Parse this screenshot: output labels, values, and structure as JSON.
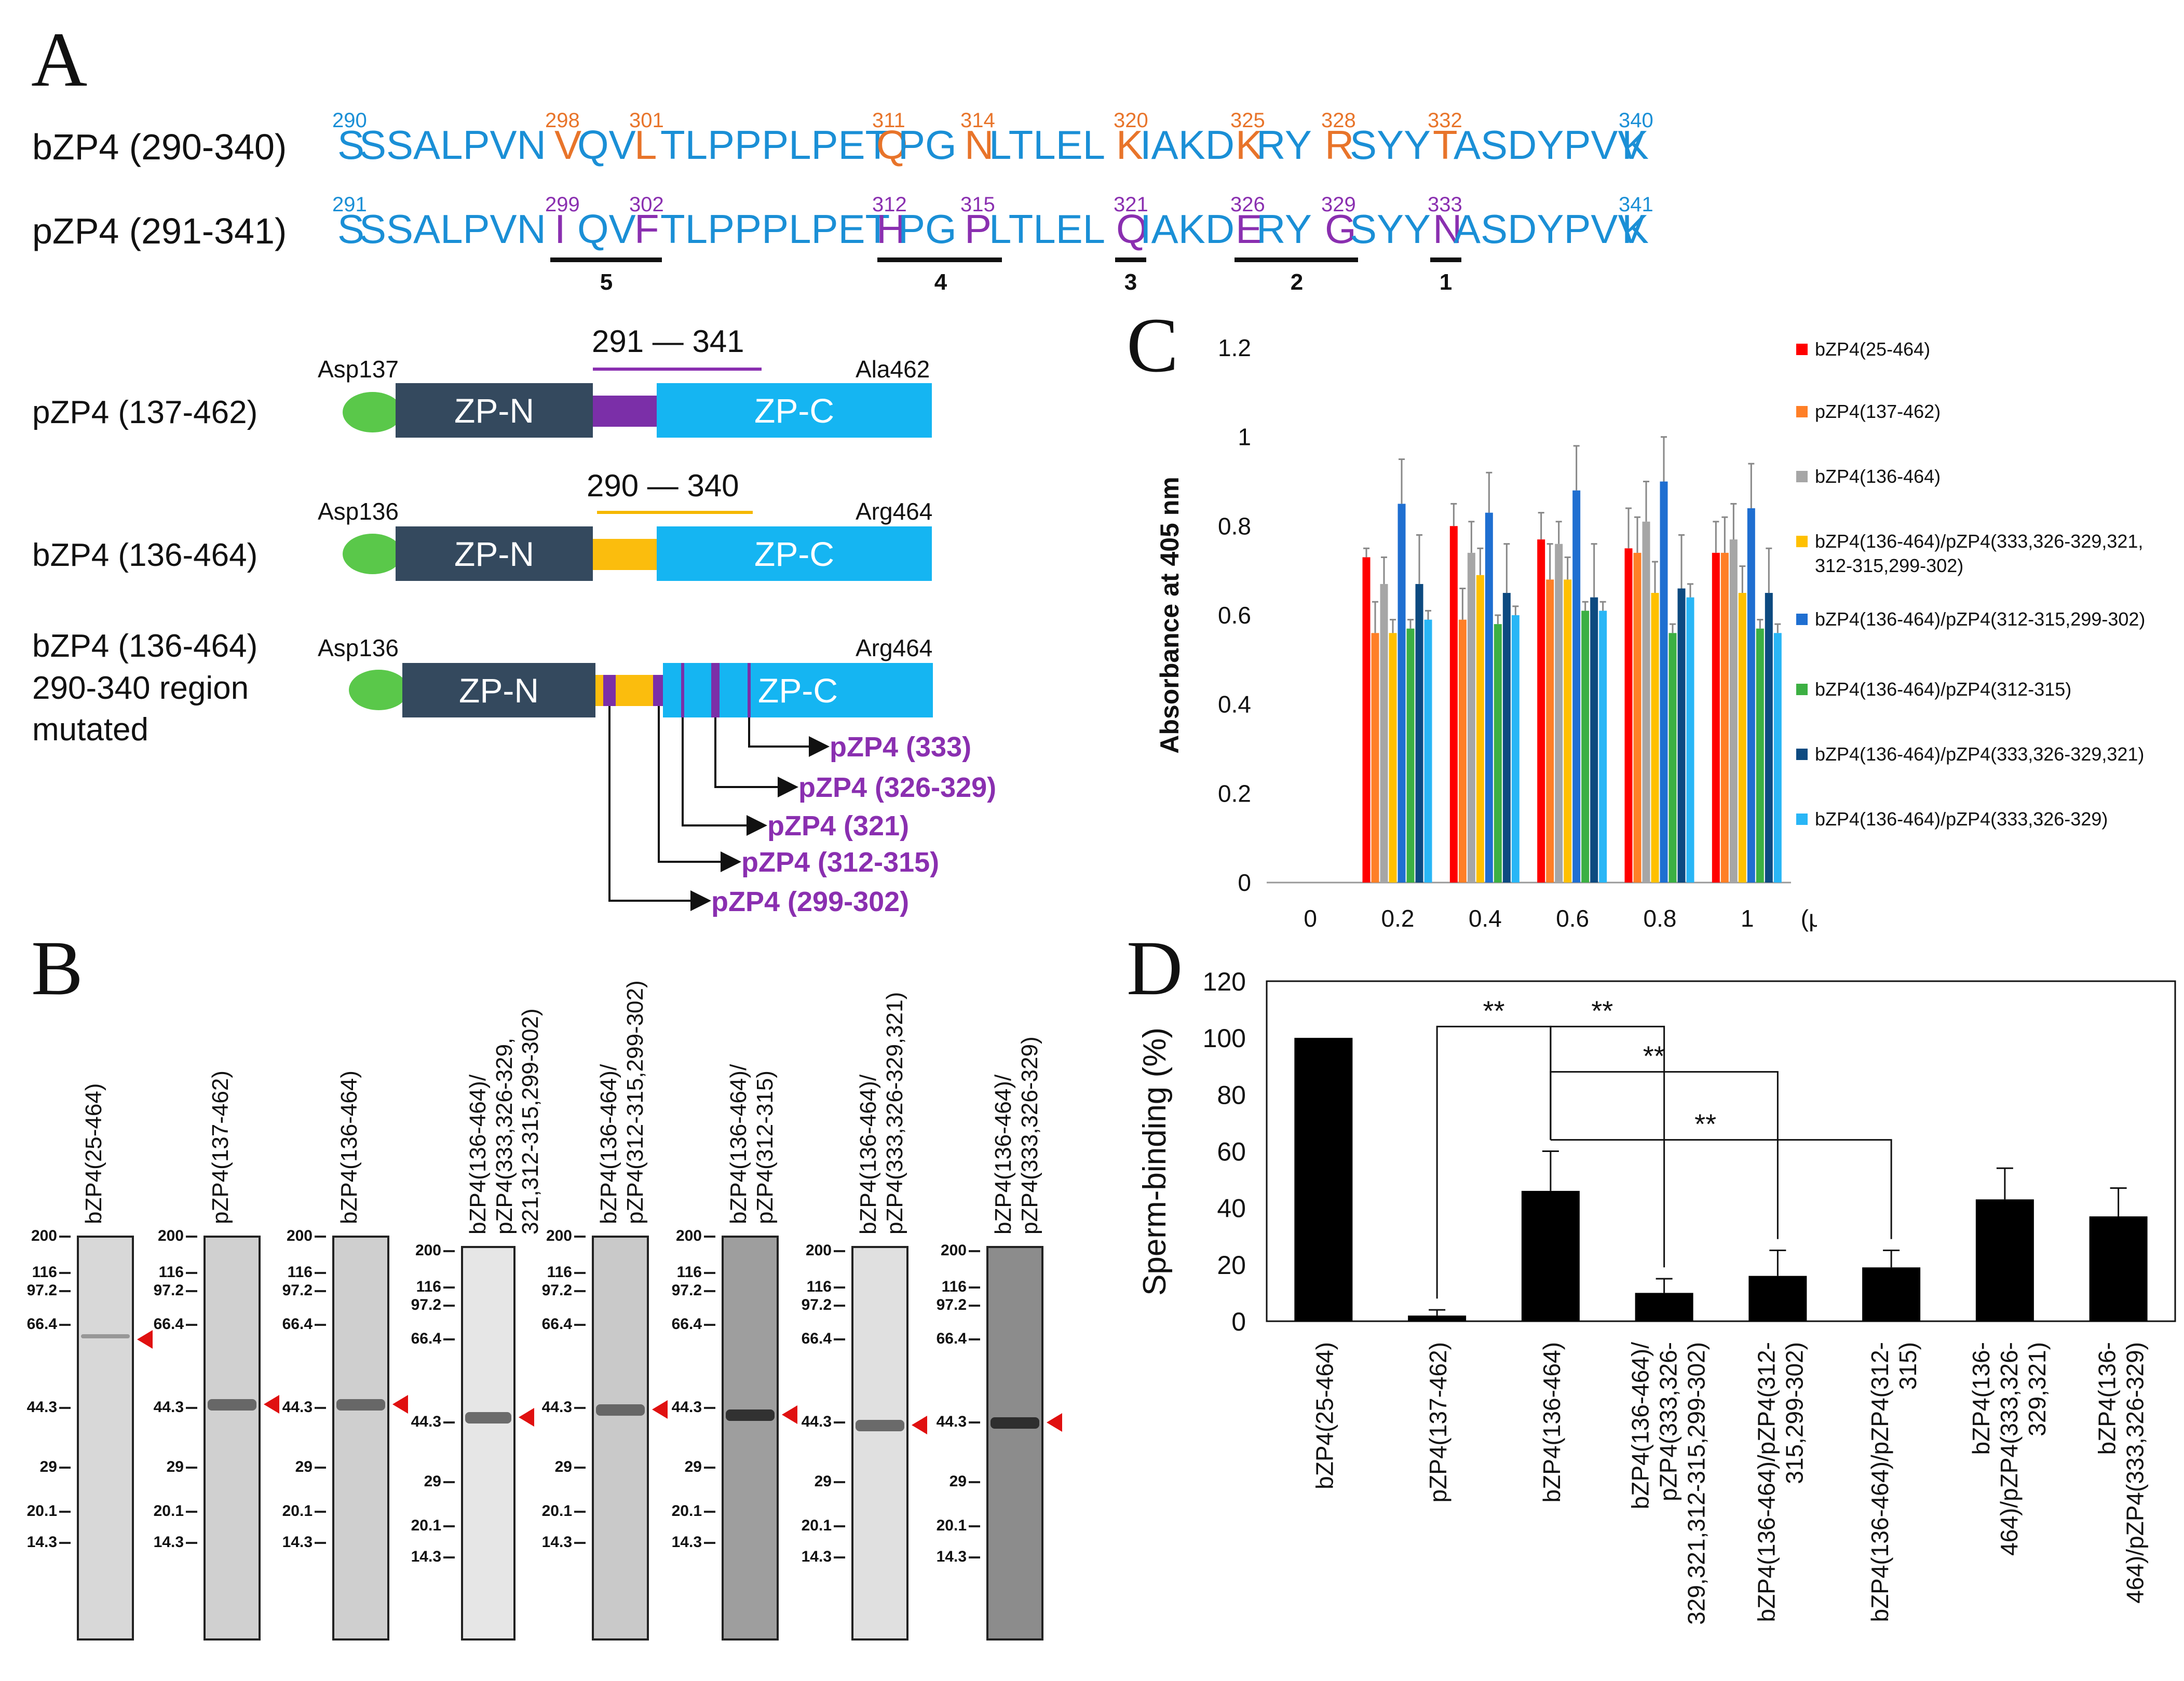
{
  "panel_letters": {
    "a": "A",
    "b": "B",
    "c": "C",
    "d": "D"
  },
  "panel_a": {
    "bzp4": {
      "label": "bZP4 (290-340)",
      "tokens": [
        {
          "t": "S",
          "color": "#1a8fd6"
        },
        {
          "t": "SSALPVN",
          "color": "#1a8fd6"
        },
        {
          "t": "V",
          "color": "#e8742a"
        },
        {
          "t": "QV",
          "color": "#1a8fd6"
        },
        {
          "t": "L",
          "color": "#e8742a"
        },
        {
          "t": "TLPPPLPET",
          "color": "#1a8fd6"
        },
        {
          "t": "Q",
          "color": "#e8742a"
        },
        {
          "t": "PG",
          "color": "#1a8fd6"
        },
        {
          "t": "N",
          "color": "#e8742a"
        },
        {
          "t": "LTLEL",
          "color": "#1a8fd6"
        },
        {
          "t": "K",
          "color": "#e8742a"
        },
        {
          "t": "IAKD",
          "color": "#1a8fd6"
        },
        {
          "t": "K",
          "color": "#e8742a"
        },
        {
          "t": "RY",
          "color": "#1a8fd6"
        },
        {
          "t": "R",
          "color": "#e8742a"
        },
        {
          "t": "SYY",
          "color": "#1a8fd6"
        },
        {
          "t": "T",
          "color": "#e8742a"
        },
        {
          "t": "ASDYPVV",
          "color": "#1a8fd6"
        },
        {
          "t": "K",
          "color": "#1a8fd6"
        }
      ],
      "numbers": [
        {
          "n": "290",
          "color": "#1a8fd6"
        },
        {
          "n": "298",
          "color": "#e8742a"
        },
        {
          "n": "301",
          "color": "#e8742a"
        },
        {
          "n": "311",
          "color": "#e8742a"
        },
        {
          "n": "314",
          "color": "#e8742a"
        },
        {
          "n": "320",
          "color": "#e8742a"
        },
        {
          "n": "325",
          "color": "#e8742a"
        },
        {
          "n": "328",
          "color": "#e8742a"
        },
        {
          "n": "332",
          "color": "#e8742a"
        },
        {
          "n": "340",
          "color": "#1a8fd6"
        }
      ]
    },
    "pzp4": {
      "label": "pZP4 (291-341)",
      "tokens": [
        {
          "t": "S",
          "color": "#1a8fd6"
        },
        {
          "t": "SSALPVN",
          "color": "#1a8fd6"
        },
        {
          "t": "I",
          "color": "#8a2fb0"
        },
        {
          "t": "QV",
          "color": "#1a8fd6"
        },
        {
          "t": "F",
          "color": "#8a2fb0"
        },
        {
          "t": "TLPPPLPET",
          "color": "#1a8fd6"
        },
        {
          "t": "H",
          "color": "#8a2fb0"
        },
        {
          "t": "PG",
          "color": "#1a8fd6"
        },
        {
          "t": "P",
          "color": "#8a2fb0"
        },
        {
          "t": "LTLEL",
          "color": "#1a8fd6"
        },
        {
          "t": "Q",
          "color": "#8a2fb0"
        },
        {
          "t": "IAKD",
          "color": "#1a8fd6"
        },
        {
          "t": "E",
          "color": "#8a2fb0"
        },
        {
          "t": "RY",
          "color": "#1a8fd6"
        },
        {
          "t": "G",
          "color": "#8a2fb0"
        },
        {
          "t": "SYY",
          "color": "#1a8fd6"
        },
        {
          "t": "N",
          "color": "#8a2fb0"
        },
        {
          "t": "ASDYPVV",
          "color": "#1a8fd6"
        },
        {
          "t": "K",
          "color": "#1a8fd6"
        }
      ],
      "numbers": [
        {
          "n": "291",
          "color": "#1a8fd6"
        },
        {
          "n": "299",
          "color": "#8a2fb0"
        },
        {
          "n": "302",
          "color": "#8a2fb0"
        },
        {
          "n": "312",
          "color": "#8a2fb0"
        },
        {
          "n": "315",
          "color": "#8a2fb0"
        },
        {
          "n": "321",
          "color": "#8a2fb0"
        },
        {
          "n": "326",
          "color": "#8a2fb0"
        },
        {
          "n": "329",
          "color": "#8a2fb0"
        },
        {
          "n": "333",
          "color": "#8a2fb0"
        },
        {
          "n": "341",
          "color": "#1a8fd6"
        }
      ]
    },
    "regions": [
      "5",
      "4",
      "3",
      "2",
      "1"
    ],
    "constructs": {
      "pzp4_137": {
        "name": "pZP4 (137-462)",
        "start": "Asp137",
        "end": "Ala462",
        "range": "291 — 341",
        "zp_n": "ZP-N",
        "zp_c": "ZP-C"
      },
      "bzp4_136": {
        "name": "bZP4 (136-464)",
        "start": "Asp136",
        "end": "Arg464",
        "range": "290 — 340",
        "zp_n": "ZP-N",
        "zp_c": "ZP-C"
      },
      "mutated": {
        "name_line1": "bZP4 (136-464)",
        "name_line2": "290-340 region",
        "name_line3": "mutated",
        "start": "Asp136",
        "end": "Arg464",
        "zp_n": "ZP-N",
        "zp_c": "ZP-C"
      }
    },
    "mutation_labels": [
      "pZP4 (333)",
      "pZP4 (326-329)",
      "pZP4 (321)",
      "pZP4 (312-315)",
      "pZP4 (299-302)"
    ]
  },
  "panel_b": {
    "markers": [
      "200",
      "116",
      "97.2",
      "66.4",
      "44.3",
      "29",
      "20.1",
      "14.3"
    ],
    "lanes": [
      {
        "title": "bZP4(25-464)"
      },
      {
        "title": "pZP4(137-462)"
      },
      {
        "title": "bZP4(136-464)"
      },
      {
        "title": "bZP4(136-464)/\npZP4(333,326-329,\n321,312-315,299-302)"
      },
      {
        "title": "bZP4(136-464)/\npZP4(312-315,299-302)"
      },
      {
        "title": "bZP4(136-464)/\npZP4(312-315)"
      },
      {
        "title": "bZP4(136-464)/\npZP4(333,326-329,321)"
      },
      {
        "title": "bZP4(136-464)/\npZP4(333,326-329)"
      }
    ]
  },
  "chart_data": [
    {
      "type": "bar",
      "panel": "C",
      "ylabel": "Absorbance at 405 nm",
      "xlabel": "(μg)",
      "categories": [
        "0",
        "0.2",
        "0.4",
        "0.6",
        "0.8",
        "1"
      ],
      "ylim": [
        0,
        1.2
      ],
      "yticks": [
        "0",
        "0.2",
        "0.4",
        "0.6",
        "0.8",
        "1",
        "1.2"
      ],
      "series": [
        {
          "name": "bZP4(25-464)",
          "color": "#ff0000",
          "values": [
            0,
            0.73,
            0.8,
            0.77,
            0.75,
            0.74
          ],
          "errors": [
            0,
            0.02,
            0.05,
            0.06,
            0.09,
            0.07
          ]
        },
        {
          "name": "pZP4(137-462)",
          "color": "#ff7f27",
          "values": [
            0,
            0.56,
            0.59,
            0.68,
            0.74,
            0.74
          ],
          "errors": [
            0,
            0.07,
            0.07,
            0.08,
            0.08,
            0.08
          ]
        },
        {
          "name": "bZP4(136-464)",
          "color": "#a6a6a6",
          "values": [
            0,
            0.67,
            0.74,
            0.76,
            0.81,
            0.77
          ],
          "errors": [
            0,
            0.06,
            0.07,
            0.05,
            0.09,
            0.08
          ]
        },
        {
          "name": "bZP4(136-464)/pZP4(333,326-329,321,312-315,299-302)",
          "color": "#ffc000",
          "values": [
            0,
            0.56,
            0.69,
            0.68,
            0.65,
            0.65
          ],
          "errors": [
            0,
            0.03,
            0.06,
            0.05,
            0.07,
            0.06
          ]
        },
        {
          "name": "bZP4(136-464)/pZP4(312-315,299-302)",
          "color": "#1f6fd1",
          "values": [
            0,
            0.85,
            0.83,
            0.88,
            0.9,
            0.84
          ],
          "errors": [
            0,
            0.1,
            0.09,
            0.1,
            0.1,
            0.1
          ]
        },
        {
          "name": "bZP4(136-464)/pZP4(312-315)",
          "color": "#3cb043",
          "values": [
            0,
            0.57,
            0.58,
            0.61,
            0.56,
            0.57
          ],
          "errors": [
            0,
            0.02,
            0.02,
            0.02,
            0.02,
            0.02
          ]
        },
        {
          "name": "bZP4(136-464)/pZP4(333,326-329,321)",
          "color": "#0d4a80",
          "values": [
            0,
            0.67,
            0.65,
            0.64,
            0.66,
            0.65
          ],
          "errors": [
            0,
            0.11,
            0.11,
            0.12,
            0.12,
            0.1
          ]
        },
        {
          "name": "bZP4(136-464)/pZP4(333,326-329)",
          "color": "#29b6f6",
          "values": [
            0,
            0.59,
            0.6,
            0.61,
            0.64,
            0.56
          ],
          "errors": [
            0,
            0.02,
            0.02,
            0.02,
            0.03,
            0.02
          ]
        }
      ],
      "legend": [
        "bZP4(25-464)",
        "pZP4(137-462)",
        "bZP4(136-464)",
        "bZP4(136-464)/pZP4(333,326-329,321,312-315,299-302)",
        "bZP4(136-464)/pZP4(312-315,299-302)",
        "bZP4(136-464)/pZP4(312-315)",
        "bZP4(136-464)/pZP4(333,326-329,321)",
        "bZP4(136-464)/pZP4(333,326-329)"
      ]
    },
    {
      "type": "bar",
      "panel": "D",
      "ylabel": "Sperm-binding (%)",
      "ylim": [
        0,
        120
      ],
      "yticks": [
        "0",
        "20",
        "40",
        "60",
        "80",
        "100",
        "120"
      ],
      "categories": [
        "bZP4(25-464)",
        "pZP4(137-462)",
        "bZP4(136-464)",
        "bZP4(136-464)/\npZP4(333,326-\n329,321,312-315,299-302)",
        "bZP4(136-464)/pZP4(312-\n315,299-302)",
        "bZP4(136-464)/pZP4(312-\n315)",
        "bZP4(136-\n464)/pZP4(333,326-\n329,321)",
        "bZP4(136-\n464)/pZP4(333,326-329)"
      ],
      "values": [
        100,
        2,
        46,
        10,
        16,
        19,
        43,
        37
      ],
      "errors": [
        0,
        2,
        14,
        5,
        9,
        6,
        11,
        10
      ],
      "color": "#000000",
      "significance": [
        {
          "from": 1,
          "to": 2,
          "label": "**"
        },
        {
          "from": 2,
          "to": 3,
          "label": "**"
        },
        {
          "from": 2,
          "to": 4,
          "label": "**"
        },
        {
          "from": 2,
          "to": 5,
          "label": "**"
        }
      ]
    }
  ]
}
